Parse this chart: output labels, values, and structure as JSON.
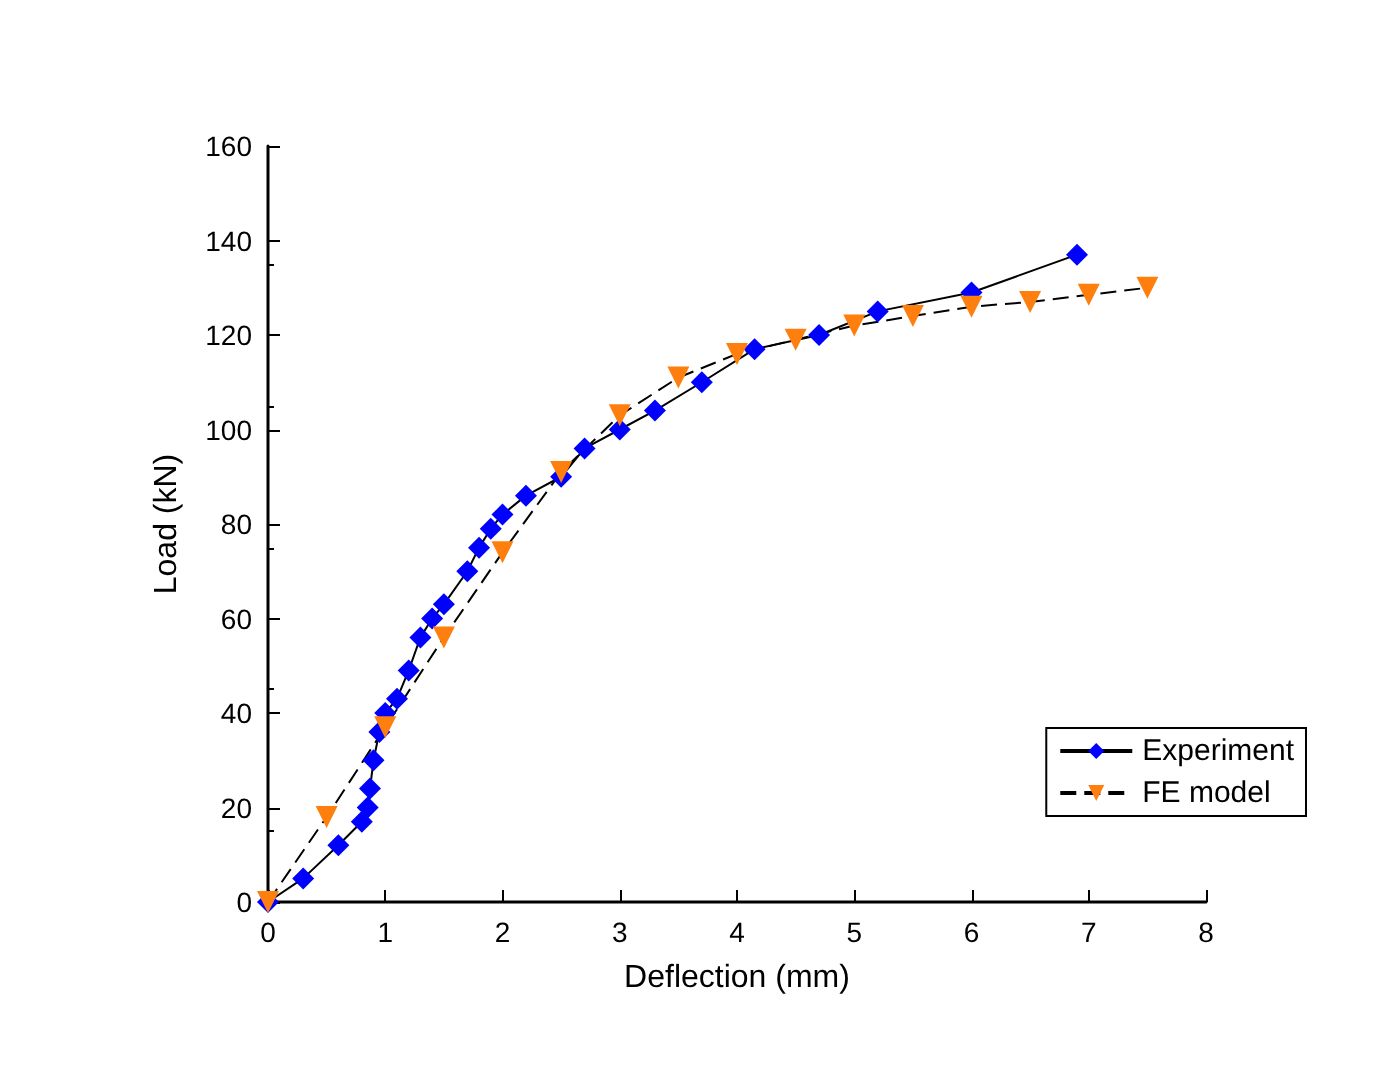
{
  "chart_data": {
    "type": "line",
    "xlabel": "Deflection (mm)",
    "ylabel": "Load (kN)",
    "xlim": [
      0,
      8
    ],
    "xticks": [
      0,
      1,
      2,
      3,
      4,
      5,
      6,
      7,
      8
    ],
    "ylim": [
      0,
      160
    ],
    "yticks": [
      0,
      20,
      40,
      60,
      80,
      100,
      120,
      140,
      160
    ],
    "grid": false,
    "legend": "bottom right",
    "series": [
      {
        "name": "Experiment",
        "color": "#0000ff",
        "marker": "diamond",
        "line_style": "solid",
        "x": [
          0,
          0.3,
          0.6,
          0.8,
          0.85,
          0.87,
          0.9,
          0.95,
          1.0,
          1.1,
          1.2,
          1.3,
          1.4,
          1.5,
          1.7,
          1.8,
          1.9,
          2.0,
          2.2,
          2.5,
          2.7,
          3.0,
          3.3,
          3.7,
          4.15,
          4.7,
          5.2,
          6.0,
          6.9
        ],
        "values": [
          0,
          5,
          12,
          17,
          20,
          24,
          30,
          36,
          40,
          43,
          49,
          56,
          60,
          63,
          70,
          75,
          79,
          82,
          86,
          90,
          96,
          100,
          104,
          110,
          117,
          120,
          125,
          129,
          137
        ]
      },
      {
        "name": "FE model",
        "color": "#ff7f0e",
        "marker": "triangle",
        "line_style": "dashed",
        "x": [
          0,
          0.5,
          1.0,
          1.5,
          2.0,
          2.5,
          3.0,
          3.5,
          4.0,
          4.5,
          5.0,
          5.5,
          6.0,
          6.5,
          7.0,
          7.5
        ],
        "values": [
          0,
          18,
          37,
          56,
          74,
          91,
          103,
          111,
          116,
          119,
          122,
          124,
          126,
          127,
          128.5,
          130
        ]
      }
    ]
  }
}
